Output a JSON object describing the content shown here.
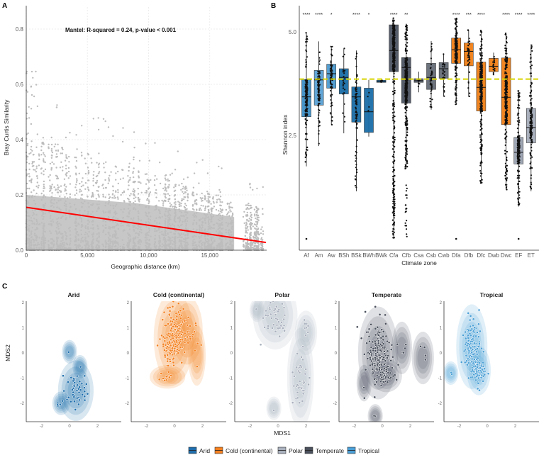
{
  "panels": {
    "a": "A",
    "b": "B",
    "c": "C"
  },
  "chart_data": [
    {
      "id": "A",
      "type": "scatter",
      "annotation": "Mantel: R-squared = 0.24, p-value < 0.001",
      "xlabel": "Geographic distance (km)",
      "ylabel": "Bray Curtis Similarity",
      "xlim": [
        0,
        19600
      ],
      "ylim": [
        0,
        0.88
      ],
      "xticks": [
        0,
        5000,
        10000,
        15000
      ],
      "xtick_labels": [
        "0",
        "5,000",
        "10,000",
        "15,000"
      ],
      "yticks": [
        0,
        0.2,
        0.4,
        0.6,
        0.8
      ],
      "ytick_labels": [
        "0.0",
        "0.2",
        "0.4",
        "0.6",
        "0.8"
      ],
      "regression": {
        "x": [
          0,
          19600
        ],
        "y": [
          0.155,
          0.028
        ],
        "color": "#ff0000"
      },
      "point_color": "#bdbdbd",
      "grid": true
    },
    {
      "id": "B",
      "type": "box",
      "xlabel": "Climate zone",
      "ylabel": "Shannon index",
      "ylim": [
        -0.2,
        5.9
      ],
      "yticks": [
        2.5,
        5.0
      ],
      "ytick_labels": [
        "2.5",
        "5.0"
      ],
      "reference_line": {
        "y": 3.86,
        "color": "#d8d400"
      },
      "categories": [
        "Af",
        "Am",
        "Aw",
        "BSh",
        "BSk",
        "BWh",
        "BWk",
        "Cfa",
        "Cfb",
        "Csa",
        "Csb",
        "Cwb",
        "Dfa",
        "Dfb",
        "Dfc",
        "Dwb",
        "Dwc",
        "EF",
        "ET"
      ],
      "boxes": [
        {
          "lower": 1.75,
          "q1": 2.95,
          "median": 3.43,
          "q3": 3.85,
          "upper": 5.0,
          "sig": "****",
          "color": "#3d8fc6",
          "n": 150
        },
        {
          "lower": 2.24,
          "q1": 3.23,
          "median": 3.84,
          "q3": 4.07,
          "upper": 4.77,
          "sig": "****",
          "color": "#5aa2d5",
          "n": 100
        },
        {
          "lower": 2.75,
          "q1": 3.64,
          "median": 3.99,
          "q3": 4.22,
          "upper": 4.65,
          "sig": "*",
          "color": "#4c9ad0",
          "n": 80
        },
        {
          "lower": 2.55,
          "q1": 3.5,
          "median": 3.9,
          "q3": 4.11,
          "upper": 4.6,
          "sig": "",
          "color": "#1a6ea8",
          "n": 25
        },
        {
          "lower": 1.15,
          "q1": 2.82,
          "median": 3.43,
          "q3": 3.67,
          "upper": 4.55,
          "sig": "****",
          "color": "#1a6ea8",
          "n": 80
        },
        {
          "lower": 2.47,
          "q1": 2.57,
          "median": 3.07,
          "q3": 3.64,
          "upper": 3.84,
          "sig": "*",
          "color": "#1a6ea8",
          "n": 4
        },
        {
          "lower": 3.77,
          "q1": 3.78,
          "median": 3.8,
          "q3": 3.83,
          "upper": 3.84,
          "sig": "",
          "color": "#1a6ea8",
          "n": 3
        },
        {
          "lower": 0.0,
          "q1": 4.04,
          "median": 4.55,
          "q3": 5.17,
          "upper": 5.35,
          "sig": "****",
          "color": "#4d5563",
          "n": 400
        },
        {
          "lower": 1.69,
          "q1": 3.28,
          "median": 4.14,
          "q3": 4.38,
          "upper": 5.2,
          "sig": "**",
          "color": "#4d5563",
          "n": 400
        },
        {
          "lower": 3.54,
          "q1": 3.78,
          "median": 3.82,
          "q3": 3.87,
          "upper": 4.04,
          "sig": "",
          "color": "#5e6672",
          "n": 8
        },
        {
          "lower": 3.12,
          "q1": 3.61,
          "median": 3.9,
          "q3": 4.24,
          "upper": 4.78,
          "sig": "",
          "color": "#666d78",
          "n": 40
        },
        {
          "lower": 3.44,
          "q1": 3.88,
          "median": 4.11,
          "q3": 4.26,
          "upper": 4.47,
          "sig": "",
          "color": "#666d78",
          "n": 25
        },
        {
          "lower": 3.24,
          "q1": 4.24,
          "median": 4.57,
          "q3": 4.85,
          "upper": 5.33,
          "sig": "****",
          "color": "#f07f16",
          "n": 200
        },
        {
          "lower": 3.43,
          "q1": 4.18,
          "median": 4.53,
          "q3": 4.73,
          "upper": 5.05,
          "sig": "***",
          "color": "#f07f16",
          "n": 40
        },
        {
          "lower": 1.35,
          "q1": 3.09,
          "median": 3.66,
          "q3": 4.27,
          "upper": 5.05,
          "sig": "****",
          "color": "#f07f16",
          "n": 300
        },
        {
          "lower": 3.95,
          "q1": 4.04,
          "median": 4.17,
          "q3": 4.36,
          "upper": 4.5,
          "sig": "",
          "color": "#f07f16",
          "n": 15
        },
        {
          "lower": 1.18,
          "q1": 2.76,
          "median": 3.42,
          "q3": 4.37,
          "upper": 4.98,
          "sig": "****",
          "color": "#f07f16",
          "n": 250
        },
        {
          "lower": 0.78,
          "q1": 1.81,
          "median": 2.09,
          "q3": 2.45,
          "upper": 3.58,
          "sig": "****",
          "color": "#9aa2b0",
          "n": 200
        },
        {
          "lower": 1.15,
          "q1": 2.32,
          "median": 2.69,
          "q3": 3.15,
          "upper": 4.7,
          "sig": "****",
          "color": "#a6adba",
          "n": 150
        }
      ]
    },
    {
      "id": "C",
      "type": "scatter",
      "xlabel": "MDS1",
      "ylabel": "MDS2",
      "xlim": [
        -3.1,
        3.7
      ],
      "ylim": [
        -2.73,
        2.1
      ],
      "xticks": [
        -2,
        0,
        2
      ],
      "xtick_labels": [
        "-2",
        "0",
        "2"
      ],
      "yticks": [
        -2,
        -1,
        0,
        1,
        2
      ],
      "ytick_labels": [
        "-2",
        "-1",
        "0",
        "1",
        "2"
      ],
      "facets": [
        {
          "title": "Arid",
          "color": "#1f6fad",
          "clusters": [
            {
              "cx": 0.45,
              "cy": -1.5,
              "sx": 0.35,
              "sy": 0.35,
              "n": 45
            },
            {
              "cx": 0.0,
              "cy": 0.05,
              "sx": 0.05,
              "sy": 0.05,
              "n": 1
            },
            {
              "cx": 0.75,
              "cy": -0.55,
              "sx": 0.05,
              "sy": 0.05,
              "n": 1
            },
            {
              "cx": -0.6,
              "cy": -2.0,
              "sx": 0.15,
              "sy": 0.1,
              "n": 5
            }
          ]
        },
        {
          "title": "Cold (continental)",
          "color": "#f4801f",
          "clusters": [
            {
              "cx": -0.05,
              "cy": 0.6,
              "sx": 0.4,
              "sy": 0.55,
              "n": 200
            },
            {
              "cx": 0.9,
              "cy": 0.9,
              "sx": 0.3,
              "sy": 0.4,
              "n": 25
            },
            {
              "cx": -0.5,
              "cy": -0.95,
              "sx": 0.35,
              "sy": 0.12,
              "n": 12
            },
            {
              "cx": 1.6,
              "cy": -0.1,
              "sx": 0.15,
              "sy": 0.35,
              "n": 4
            }
          ]
        },
        {
          "title": "Polar",
          "color": "#a9b0bd",
          "clusters": [
            {
              "cx": -0.2,
              "cy": 1.5,
              "sx": 0.45,
              "sy": 0.4,
              "n": 45
            },
            {
              "cx": 1.6,
              "cy": -1.0,
              "sx": 0.25,
              "sy": 0.6,
              "n": 40
            },
            {
              "cx": 2.0,
              "cy": 0.8,
              "sx": 0.2,
              "sy": 0.25,
              "n": 8
            },
            {
              "cx": -1.5,
              "cy": 1.7,
              "sx": 0.05,
              "sy": 0.05,
              "n": 1
            },
            {
              "cx": -0.3,
              "cy": -2.2,
              "sx": 0.05,
              "sy": 0.05,
              "n": 1
            }
          ]
        },
        {
          "title": "Temperate",
          "color": "#4a505c",
          "clusters": [
            {
              "cx": -0.3,
              "cy": 0.0,
              "sx": 0.4,
              "sy": 0.55,
              "n": 200
            },
            {
              "cx": 0.3,
              "cy": -0.9,
              "sx": 0.3,
              "sy": 0.18,
              "n": 40
            },
            {
              "cx": 1.4,
              "cy": 0.2,
              "sx": 0.18,
              "sy": 0.3,
              "n": 6
            },
            {
              "cx": 2.9,
              "cy": -0.2,
              "sx": 0.2,
              "sy": 0.3,
              "n": 4
            },
            {
              "cx": -0.5,
              "cy": -2.5,
              "sx": 0.05,
              "sy": 0.03,
              "n": 2
            },
            {
              "cx": -1.3,
              "cy": -1.2,
              "sx": 0.05,
              "sy": 0.2,
              "n": 2
            }
          ]
        },
        {
          "title": "Tropical",
          "color": "#4a9fd6",
          "clusters": [
            {
              "cx": -1.1,
              "cy": 0.25,
              "sx": 0.3,
              "sy": 0.5,
              "n": 120
            },
            {
              "cx": -0.6,
              "cy": -0.7,
              "sx": 0.22,
              "sy": 0.28,
              "n": 80
            },
            {
              "cx": -2.6,
              "cy": -0.8,
              "sx": 0.05,
              "sy": 0.1,
              "n": 2
            }
          ]
        }
      ],
      "legend": [
        {
          "label": "Arid",
          "color": "#1f6fad"
        },
        {
          "label": "Cold (continental)",
          "color": "#f4801f"
        },
        {
          "label": "Polar",
          "color": "#a9b0bd"
        },
        {
          "label": "Temperate",
          "color": "#4a505c"
        },
        {
          "label": "Tropical",
          "color": "#4a9fd6"
        }
      ]
    }
  ]
}
